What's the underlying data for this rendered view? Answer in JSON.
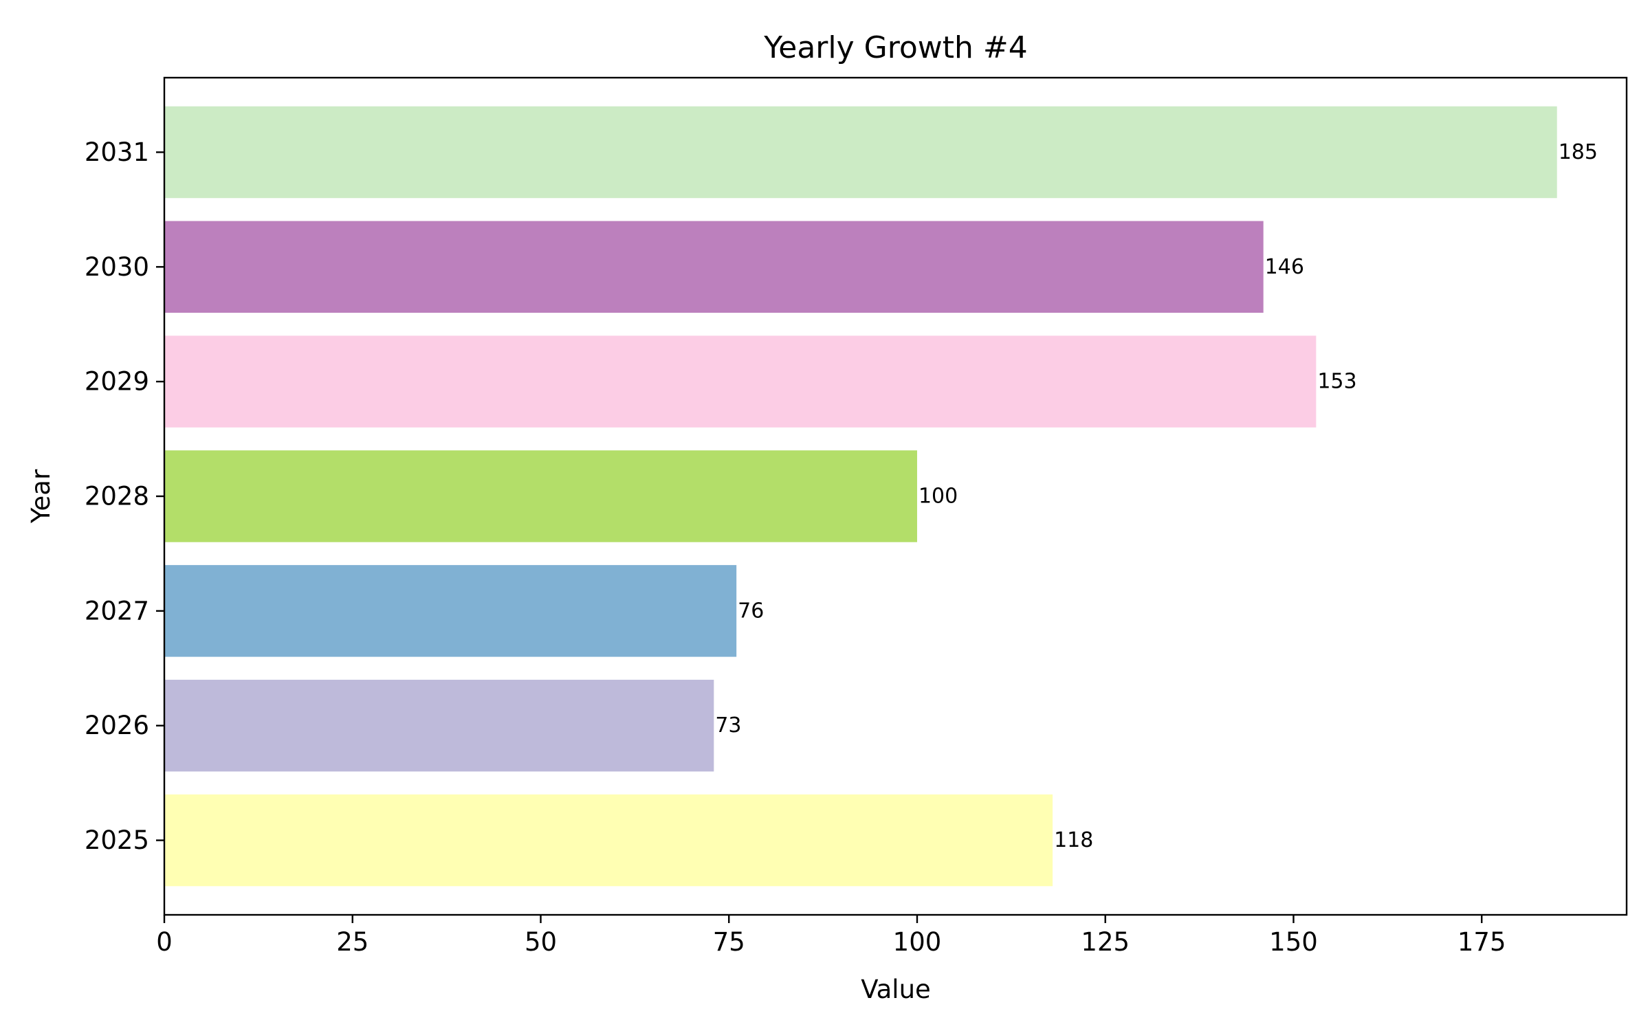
{
  "chart_data": {
    "type": "bar",
    "orientation": "horizontal",
    "title": "Yearly Growth #4",
    "xlabel": "Value",
    "ylabel": "Year",
    "categories": [
      "2025",
      "2026",
      "2027",
      "2028",
      "2029",
      "2030",
      "2031"
    ],
    "values": [
      118,
      73,
      76,
      100,
      153,
      146,
      185
    ],
    "value_labels": [
      "118",
      "73",
      "76",
      "100",
      "153",
      "146",
      "185"
    ],
    "colors": [
      "#ffffb3",
      "#bebada",
      "#80b1d3",
      "#b3de69",
      "#fccde5",
      "#bc80bd",
      "#ccebc5"
    ],
    "xlim": [
      0,
      194.25
    ],
    "xticks": [
      0,
      25,
      50,
      75,
      100,
      125,
      150,
      175
    ],
    "xtick_labels": [
      "0",
      "25",
      "50",
      "75",
      "100",
      "125",
      "150",
      "175"
    ],
    "grid": false,
    "legend": "none"
  }
}
